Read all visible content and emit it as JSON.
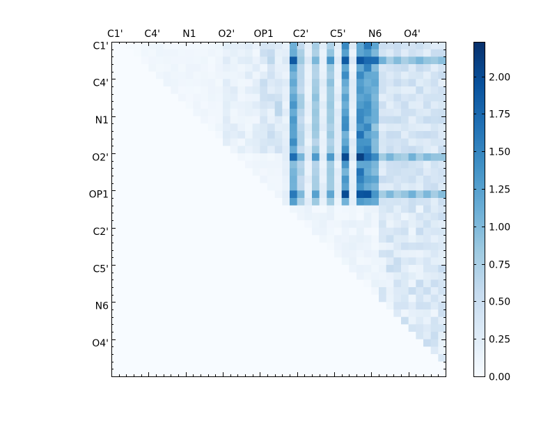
{
  "chart_data": {
    "type": "heatmap",
    "title": "",
    "xlabel": "",
    "ylabel": "",
    "x_tick_labels": [
      "C1'",
      "C4'",
      "N1",
      "O2'",
      "OP1",
      "C2'",
      "C5'",
      "N6",
      "O4'"
    ],
    "y_tick_labels": [
      "C1'",
      "C4'",
      "N1",
      "O2'",
      "OP1",
      "C2'",
      "C5'",
      "N6",
      "O4'"
    ],
    "x_axis_position": "top",
    "grid_size": [
      45,
      45
    ],
    "tick_label_every": 5,
    "colormap": "Blues",
    "color_min": "#f7fbff",
    "color_max": "#08306b",
    "colorbar": {
      "vmin": 0.0,
      "vmax": 2.23,
      "placement": "right",
      "tick_labels": [
        "0.00",
        "0.25",
        "0.50",
        "0.75",
        "1.00",
        "1.25",
        "1.50",
        "1.75",
        "2.00"
      ],
      "tick_values": [
        0.0,
        0.25,
        0.5,
        0.75,
        1.0,
        1.25,
        1.5,
        1.75,
        2.0
      ]
    },
    "upper_triangle_only": true,
    "row_profile_description_values": {
      "strong_columns": [
        24,
        25,
        27,
        29,
        31,
        33,
        34,
        35
      ],
      "strong_rows": [
        2,
        15,
        20
      ]
    }
  }
}
